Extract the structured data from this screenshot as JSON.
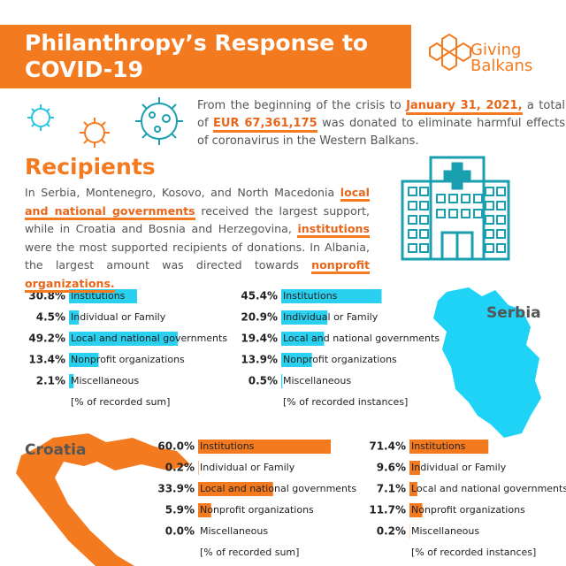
{
  "header": {
    "title": "Philanthropy’s Response to COVID-19",
    "brand_top": "Giving",
    "brand_bottom": "Balkans"
  },
  "intro": {
    "parts": [
      {
        "text": "From the beginning of the crisis to "
      },
      {
        "text": "January 31, 2021,",
        "highlight": true
      },
      {
        "text": " a total of "
      },
      {
        "text": "EUR 67,361,175",
        "highlight": true
      },
      {
        "text": " was donated to eliminate harmful effects of coronavirus in the Western Balkans."
      }
    ]
  },
  "recipients": {
    "heading": "Recipients",
    "parts": [
      {
        "text": "In Serbia, Montenegro, Kosovo, and North Macedonia "
      },
      {
        "text": "local and national governments",
        "highlight": true
      },
      {
        "text": " received the largest support, while in Croatia and Bosnia and Herzegovina, "
      },
      {
        "text": "institutions",
        "highlight": true
      },
      {
        "text": " were the most supported recipients of donations. In Albania, the largest amount was directed towards "
      },
      {
        "text": "nonprofit organizations.",
        "highlight": true
      }
    ]
  },
  "maps": {
    "serbia": "Serbia",
    "croatia": "Croatia"
  },
  "chart_data": [
    {
      "type": "bar",
      "orientation": "horizontal",
      "color": "#29d0f0",
      "xlim": [
        0,
        100
      ],
      "categories": [
        "Institutions",
        "Individual or Family",
        "Local and national governments",
        "Nonprofit organizations",
        "Miscellaneous"
      ],
      "values": [
        30.8,
        4.5,
        49.2,
        13.4,
        2.1
      ],
      "value_labels": [
        "30.8%",
        "4.5%",
        "49.2%",
        "13.4%",
        "2.1%"
      ],
      "xlabel": "[% of recorded sum]"
    },
    {
      "type": "bar",
      "orientation": "horizontal",
      "color": "#29d0f0",
      "xlim": [
        0,
        100
      ],
      "categories": [
        "Institutions",
        "Individual or Family",
        "Local and national governments",
        "Nonprofit organizations",
        "Miscellaneous"
      ],
      "values": [
        45.4,
        20.9,
        19.4,
        13.9,
        0.5
      ],
      "value_labels": [
        "45.4%",
        "20.9%",
        "19.4%",
        "13.9%",
        "0.5%"
      ],
      "xlabel": "[% of recorded instances]"
    },
    {
      "type": "bar",
      "orientation": "horizontal",
      "color": "#f47a1f",
      "xlim": [
        0,
        100
      ],
      "categories": [
        "Institutions",
        "Individual or Family",
        "Local and national governments",
        "Nonprofit organizations",
        "Miscellaneous"
      ],
      "values": [
        60.0,
        0.2,
        33.9,
        5.9,
        0.0
      ],
      "value_labels": [
        "60.0%",
        "0.2%",
        "33.9%",
        "5.9%",
        "0.0%"
      ],
      "xlabel": "[% of recorded sum]"
    },
    {
      "type": "bar",
      "orientation": "horizontal",
      "color": "#f47a1f",
      "xlim": [
        0,
        100
      ],
      "categories": [
        "Institutions",
        "Individual or Family",
        "Local and national governments",
        "Nonprofit organizations",
        "Miscellaneous"
      ],
      "values": [
        71.4,
        9.6,
        7.1,
        11.7,
        0.2
      ],
      "value_labels": [
        "71.4%",
        "9.6%",
        "7.1%",
        "11.7%",
        "0.2%"
      ],
      "xlabel": "[% of recorded instances]"
    }
  ]
}
